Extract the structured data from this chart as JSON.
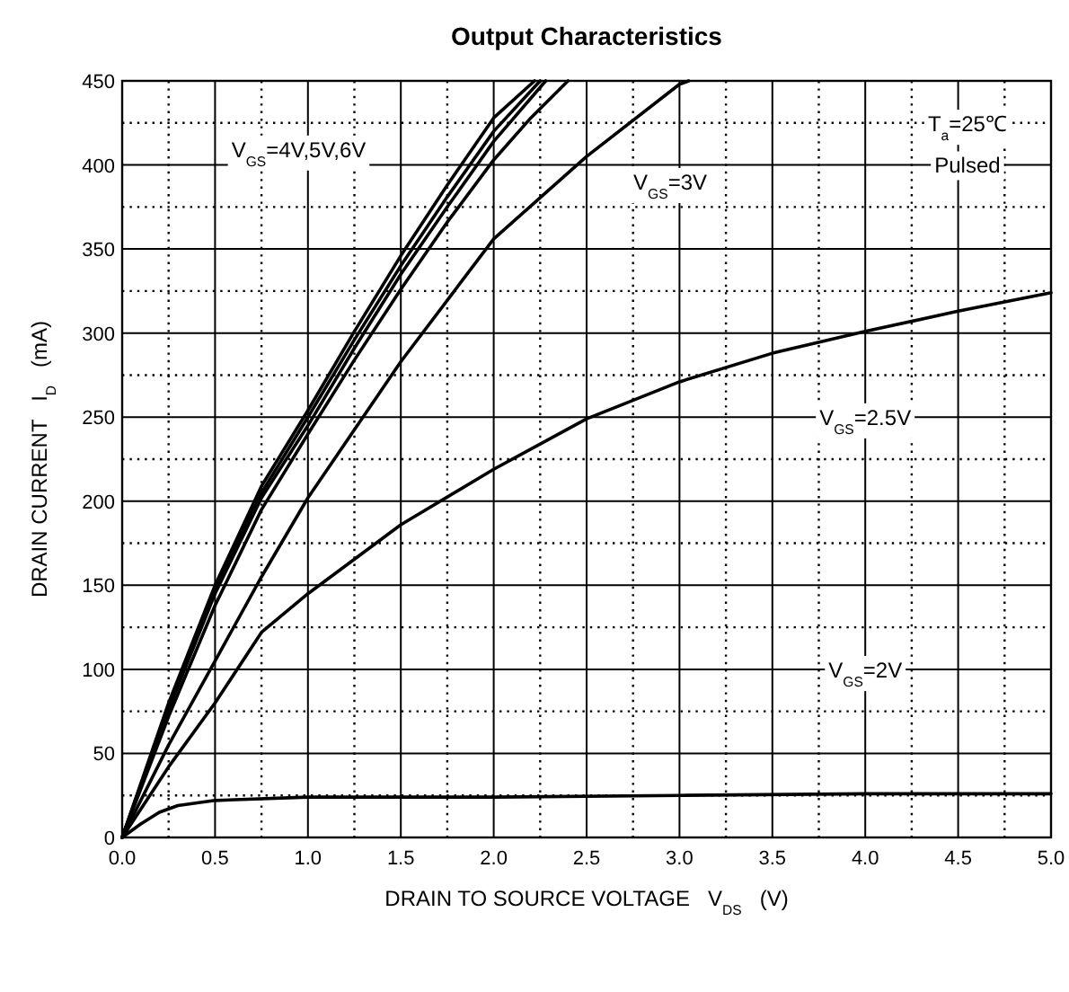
{
  "chart_data": {
    "type": "line",
    "title": "Output Characteristics",
    "xlabel": "DRAIN TO SOURCE VOLTAGE   V$_{DS}$   (V)",
    "ylabel": "DRAIN CURRENT   I$_{D}$   (mA)",
    "series": [
      {
        "color": "#000000",
        "x": [
          0,
          0.25,
          0.5,
          0.75,
          1.0,
          1.25,
          1.5,
          1.75,
          2.0,
          2.22
        ],
        "values": [
          0,
          80,
          150,
          209,
          254,
          301,
          346,
          388,
          428,
          450
        ]
      },
      {
        "color": "#000000",
        "x": [
          0,
          0.25,
          0.5,
          0.75,
          1.0,
          1.25,
          1.5,
          1.75,
          2.0,
          2.25
        ],
        "values": [
          0,
          78,
          147,
          205,
          250,
          296,
          340,
          381,
          420,
          450
        ]
      },
      {
        "color": "#000000",
        "x": [
          0,
          0.25,
          0.5,
          0.75,
          1.0,
          1.25,
          1.5,
          1.75,
          2.0,
          2.28
        ],
        "values": [
          0,
          76,
          145,
          202,
          245,
          291,
          335,
          375,
          414,
          450
        ]
      },
      {
        "color": "#000000",
        "x": [
          0,
          0.25,
          0.5,
          0.75,
          1.0,
          1.25,
          1.5,
          1.75,
          2.0,
          2.2,
          2.4
        ],
        "values": [
          0,
          72,
          138,
          195,
          240,
          284,
          326,
          366,
          403,
          428,
          450
        ]
      },
      {
        "color": "#000000",
        "x": [
          0,
          0.25,
          0.5,
          0.75,
          1.0,
          1.5,
          2.0,
          2.5,
          3.0,
          3.05
        ],
        "values": [
          0,
          55,
          105,
          155,
          202,
          283,
          356,
          405,
          448,
          450
        ]
      },
      {
        "color": "#000000",
        "x": [
          0,
          0.25,
          0.5,
          0.75,
          1.0,
          1.5,
          2.0,
          2.5,
          3.0,
          3.5,
          4.0,
          4.5,
          5.0
        ],
        "values": [
          0,
          42,
          80,
          122,
          145,
          186,
          219,
          249,
          271,
          288,
          301,
          313,
          324
        ]
      },
      {
        "color": "#000000",
        "x": [
          0,
          0.1,
          0.2,
          0.3,
          0.5,
          1.0,
          2.0,
          3.0,
          4.0,
          5.0
        ],
        "values": [
          0,
          8,
          15,
          19,
          22,
          24,
          24,
          25,
          26,
          26
        ]
      }
    ],
    "annotations": [
      "V$_{GS}$=4V,5V,6V",
      "V$_{GS}$=3V",
      "V$_{GS}$=2.5V",
      "V$_{GS}$=2V",
      "T$_{a}$=25℃",
      "Pulsed"
    ],
    "xlim": [
      0,
      5
    ],
    "ylim": [
      0,
      450
    ],
    "xticks": [
      {
        "value": 0,
        "label": "0.0"
      },
      {
        "value": 0.5,
        "label": "0.5"
      },
      {
        "value": 1,
        "label": "1.0"
      },
      {
        "value": 1.5,
        "label": "1.5"
      },
      {
        "value": 2,
        "label": "2.0"
      },
      {
        "value": 2.5,
        "label": "2.5"
      },
      {
        "value": 3,
        "label": "3.0"
      },
      {
        "value": 3.5,
        "label": "3.5"
      },
      {
        "value": 4,
        "label": "4.0"
      },
      {
        "value": 4.5,
        "label": "4.5"
      },
      {
        "value": 5,
        "label": "5.0"
      }
    ],
    "yticks": [
      0,
      50,
      100,
      150,
      200,
      250,
      300,
      350,
      400,
      450
    ],
    "grid": true,
    "marker": "none",
    "line_style": "solid"
  }
}
